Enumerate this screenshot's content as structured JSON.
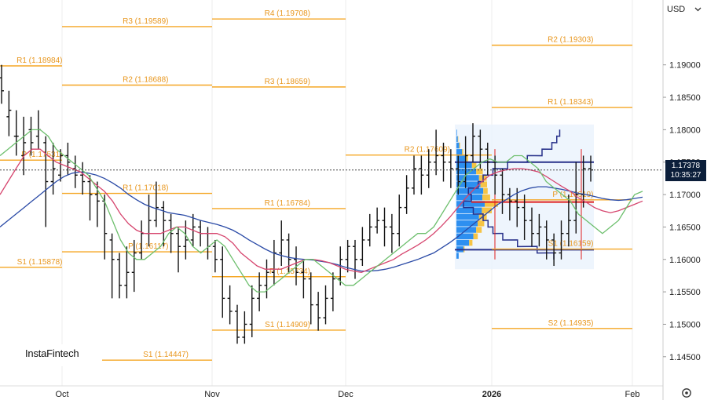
{
  "currency": "USD",
  "current_price": {
    "value": "1.17378",
    "countdown": "10:35:27"
  },
  "watermark": "InstaFintech",
  "icons": {
    "settings": "gear-icon",
    "dropdown": "chevron-down-icon"
  },
  "colors": {
    "pivot": "#f5a623",
    "pivot_text": "#e8971f",
    "candle": "#111111",
    "ma_green": "#6dbf6d",
    "ma_red": "#d6456e",
    "ma_blue": "#2a4aa6",
    "profile_blue": "#2d8ff0",
    "profile_yellow": "#f6c445",
    "poc": "#e02020"
  },
  "chart_data": {
    "type": "candlestick",
    "y_axis": {
      "ticks": [
        "1.19000",
        "1.18500",
        "1.18000",
        "1.17500",
        "1.17000",
        "1.16500",
        "1.16000",
        "1.15500",
        "1.15000",
        "1.14500"
      ],
      "ylim": [
        1.1405,
        1.2
      ]
    },
    "x_axis": {
      "ticks": [
        {
          "label": "Oct"
        },
        {
          "label": "Nov"
        },
        {
          "label": "Dec"
        },
        {
          "label": "2026",
          "bold": true
        },
        {
          "label": "Feb"
        }
      ]
    },
    "pivot_levels": [
      {
        "period": "Sep",
        "label": "R1 (1.18984)",
        "value": 1.18984
      },
      {
        "period": "Sep",
        "label": "P (1.17531)",
        "value": 1.17531
      },
      {
        "period": "Sep",
        "label": "S1 (1.15878)",
        "value": 1.15878
      },
      {
        "period": "Oct",
        "label": "R3 (1.19589)",
        "value": 1.19589
      },
      {
        "period": "Oct",
        "label": "R2 (1.18688)",
        "value": 1.18688
      },
      {
        "period": "Oct",
        "label": "R1 (1.17018)",
        "value": 1.17018
      },
      {
        "period": "Oct",
        "label": "P (1.16117)",
        "value": 1.16117
      },
      {
        "period": "Oct",
        "label": "S1 (1.14447)",
        "value": 1.14447
      },
      {
        "period": "Nov",
        "label": "R4 (1.19708)",
        "value": 1.19708
      },
      {
        "period": "Nov",
        "label": "R3 (1.18659)",
        "value": 1.18659
      },
      {
        "period": "Nov",
        "label": "R1 (1.16784)",
        "value": 1.16784
      },
      {
        "period": "Nov",
        "label": "P (1.15734)",
        "value": 1.15734
      },
      {
        "period": "Nov",
        "label": "S1 (1.14909)",
        "value": 1.14909
      },
      {
        "period": "Dec",
        "label": "R2 (1.19303)",
        "value": 1.19303
      },
      {
        "period": "Dec",
        "label": "R1 (1.18343)",
        "value": 1.18343
      },
      {
        "period": "Dec",
        "label": "R2 (1.17609)",
        "value": 1.17609
      },
      {
        "period": "Dec",
        "label": "P (1.16919)",
        "value": 1.16919
      },
      {
        "period": "Dec",
        "label": "S1 (1.16159)",
        "value": 1.16159
      },
      {
        "period": "Dec",
        "label": "S2 (1.14935)",
        "value": 1.14935
      }
    ],
    "ohlc": [
      [
        1.188,
        1.186,
        1.19,
        1.184
      ],
      [
        1.182,
        1.183,
        1.186,
        1.179
      ],
      [
        1.179,
        1.179,
        1.183,
        1.176
      ],
      [
        1.176,
        1.178,
        1.182,
        1.173
      ],
      [
        1.18,
        1.178,
        1.182,
        1.176
      ],
      [
        1.179,
        1.18,
        1.183,
        1.177
      ],
      [
        1.178,
        1.172,
        1.179,
        1.165
      ],
      [
        1.172,
        1.174,
        1.178,
        1.17
      ],
      [
        1.173,
        1.176,
        1.177,
        1.172
      ],
      [
        1.176,
        1.175,
        1.178,
        1.173
      ],
      [
        1.174,
        1.173,
        1.176,
        1.171
      ],
      [
        1.173,
        1.172,
        1.175,
        1.17
      ],
      [
        1.172,
        1.17,
        1.173,
        1.166
      ],
      [
        1.17,
        1.169,
        1.172,
        1.165
      ],
      [
        1.169,
        1.164,
        1.17,
        1.16
      ],
      [
        1.163,
        1.16,
        1.164,
        1.154
      ],
      [
        1.16,
        1.156,
        1.161,
        1.154
      ],
      [
        1.156,
        1.158,
        1.162,
        1.154
      ],
      [
        1.158,
        1.161,
        1.163,
        1.155
      ],
      [
        1.161,
        1.164,
        1.166,
        1.16
      ],
      [
        1.164,
        1.166,
        1.17,
        1.162
      ],
      [
        1.166,
        1.168,
        1.172,
        1.165
      ],
      [
        1.168,
        1.166,
        1.169,
        1.162
      ],
      [
        1.166,
        1.164,
        1.167,
        1.161
      ],
      [
        1.164,
        1.162,
        1.165,
        1.158
      ],
      [
        1.162,
        1.163,
        1.166,
        1.16
      ],
      [
        1.163,
        1.165,
        1.167,
        1.162
      ],
      [
        1.165,
        1.164,
        1.166,
        1.162
      ],
      [
        1.164,
        1.162,
        1.165,
        1.16
      ],
      [
        1.162,
        1.16,
        1.163,
        1.158
      ],
      [
        1.16,
        1.154,
        1.162,
        1.151
      ],
      [
        1.154,
        1.152,
        1.156,
        1.15
      ],
      [
        1.152,
        1.148,
        1.153,
        1.147
      ],
      [
        1.148,
        1.15,
        1.152,
        1.147
      ],
      [
        1.15,
        1.154,
        1.156,
        1.148
      ],
      [
        1.154,
        1.156,
        1.158,
        1.152
      ],
      [
        1.156,
        1.158,
        1.16,
        1.154
      ],
      [
        1.158,
        1.161,
        1.163,
        1.156
      ],
      [
        1.161,
        1.163,
        1.166,
        1.159
      ],
      [
        1.163,
        1.16,
        1.164,
        1.158
      ],
      [
        1.16,
        1.158,
        1.162,
        1.156
      ],
      [
        1.158,
        1.157,
        1.16,
        1.154
      ],
      [
        1.157,
        1.153,
        1.158,
        1.15
      ],
      [
        1.153,
        1.151,
        1.155,
        1.149
      ],
      [
        1.151,
        1.154,
        1.156,
        1.15
      ],
      [
        1.154,
        1.157,
        1.158,
        1.152
      ],
      [
        1.157,
        1.16,
        1.162,
        1.156
      ],
      [
        1.16,
        1.162,
        1.163,
        1.158
      ],
      [
        1.162,
        1.16,
        1.163,
        1.157
      ],
      [
        1.16,
        1.163,
        1.165,
        1.159
      ],
      [
        1.163,
        1.165,
        1.167,
        1.162
      ],
      [
        1.165,
        1.166,
        1.168,
        1.164
      ],
      [
        1.166,
        1.165,
        1.168,
        1.162
      ],
      [
        1.165,
        1.164,
        1.167,
        1.161
      ],
      [
        1.164,
        1.168,
        1.17,
        1.162
      ],
      [
        1.168,
        1.171,
        1.173,
        1.167
      ],
      [
        1.171,
        1.174,
        1.176,
        1.17
      ],
      [
        1.174,
        1.173,
        1.176,
        1.17
      ],
      [
        1.173,
        1.175,
        1.177,
        1.171
      ],
      [
        1.175,
        1.176,
        1.18,
        1.173
      ],
      [
        1.176,
        1.175,
        1.178,
        1.172
      ],
      [
        1.175,
        1.174,
        1.177,
        1.171
      ],
      [
        1.174,
        1.172,
        1.176,
        1.17
      ],
      [
        1.172,
        1.176,
        1.179,
        1.171
      ],
      [
        1.176,
        1.179,
        1.181,
        1.175
      ],
      [
        1.179,
        1.177,
        1.18,
        1.174
      ],
      [
        1.177,
        1.175,
        1.178,
        1.173
      ],
      [
        1.175,
        1.173,
        1.176,
        1.17
      ],
      [
        1.173,
        1.17,
        1.174,
        1.167
      ],
      [
        1.17,
        1.169,
        1.171,
        1.166
      ],
      [
        1.169,
        1.168,
        1.171,
        1.165
      ],
      [
        1.168,
        1.166,
        1.17,
        1.163
      ],
      [
        1.166,
        1.164,
        1.168,
        1.162
      ],
      [
        1.164,
        1.165,
        1.167,
        1.162
      ],
      [
        1.165,
        1.163,
        1.166,
        1.16
      ],
      [
        1.163,
        1.161,
        1.164,
        1.159
      ],
      [
        1.161,
        1.164,
        1.166,
        1.16
      ],
      [
        1.164,
        1.166,
        1.17,
        1.162
      ],
      [
        1.166,
        1.17,
        1.175,
        1.164
      ],
      [
        1.17,
        1.174,
        1.176,
        1.168
      ],
      [
        1.174,
        1.1738,
        1.176,
        1.172
      ]
    ],
    "ma_green": [
      1.176,
      1.177,
      1.178,
      1.179,
      1.18,
      1.18,
      1.179,
      1.177,
      1.176,
      1.175,
      1.174,
      1.173,
      1.171,
      1.169,
      1.166,
      1.163,
      1.161,
      1.16,
      1.16,
      1.161,
      1.162,
      1.164,
      1.165,
      1.164,
      1.162,
      1.161,
      1.162,
      1.163,
      1.162,
      1.16,
      1.158,
      1.156,
      1.155,
      1.155,
      1.156,
      1.157,
      1.158,
      1.159,
      1.16,
      1.16,
      1.159,
      1.158,
      1.157,
      1.156,
      1.156,
      1.157,
      1.158,
      1.159,
      1.16,
      1.161,
      1.162,
      1.163,
      1.164,
      1.164,
      1.165,
      1.167,
      1.169,
      1.171,
      1.173,
      1.174,
      1.175,
      1.1755,
      1.175,
      1.175,
      1.176,
      1.176,
      1.175,
      1.174,
      1.172,
      1.171,
      1.17,
      1.169,
      1.167,
      1.166,
      1.165,
      1.164,
      1.165,
      1.166,
      1.168,
      1.17,
      1.1705
    ],
    "ma_red": [
      1.17,
      1.172,
      1.174,
      1.176,
      1.177,
      1.177,
      1.176,
      1.175,
      1.1745,
      1.174,
      1.1735,
      1.1725,
      1.1715,
      1.1705,
      1.169,
      1.167,
      1.1655,
      1.1645,
      1.164,
      1.164,
      1.164,
      1.1645,
      1.165,
      1.165,
      1.1645,
      1.164,
      1.164,
      1.164,
      1.1635,
      1.1625,
      1.161,
      1.16,
      1.159,
      1.1585,
      1.1585,
      1.1585,
      1.159,
      1.1595,
      1.16,
      1.16,
      1.1598,
      1.1595,
      1.159,
      1.1585,
      1.1582,
      1.158,
      1.1585,
      1.159,
      1.1595,
      1.16,
      1.1608,
      1.1615,
      1.1622,
      1.163,
      1.164,
      1.1652,
      1.1665,
      1.168,
      1.1695,
      1.1708,
      1.172,
      1.173,
      1.1735,
      1.1738,
      1.174,
      1.174,
      1.1738,
      1.1735,
      1.1728,
      1.172,
      1.1712,
      1.1705,
      1.1695,
      1.1688,
      1.168,
      1.1675,
      1.1672,
      1.1675,
      1.168,
      1.1685,
      1.169
    ],
    "ma_blue": [
      1.165,
      1.166,
      1.167,
      1.168,
      1.169,
      1.17,
      1.171,
      1.172,
      1.1728,
      1.1733,
      1.1735,
      1.1733,
      1.173,
      1.1725,
      1.1718,
      1.171,
      1.17,
      1.1692,
      1.1685,
      1.168,
      1.1676,
      1.1672,
      1.167,
      1.1668,
      1.1664,
      1.166,
      1.1657,
      1.1654,
      1.165,
      1.1645,
      1.1638,
      1.163,
      1.1623,
      1.1616,
      1.161,
      1.1606,
      1.1603,
      1.1601,
      1.16,
      1.1599,
      1.1597,
      1.1595,
      1.1592,
      1.1588,
      1.1585,
      1.1582,
      1.1582,
      1.1583,
      1.1585,
      1.1588,
      1.1592,
      1.1596,
      1.16,
      1.1605,
      1.161,
      1.1618,
      1.1626,
      1.1635,
      1.1645,
      1.1655,
      1.1665,
      1.1675,
      1.1685,
      1.1692,
      1.17,
      1.1706,
      1.171,
      1.1712,
      1.1712,
      1.171,
      1.1708,
      1.1705,
      1.1702,
      1.17,
      1.1697,
      1.1694,
      1.1692,
      1.1691,
      1.1692,
      1.1694,
      1.1696
    ],
    "volume_profile": {
      "price_range": [
        1.1595,
        1.18
      ],
      "bins": [
        {
          "price": 1.1795,
          "blue": 0.02,
          "yellow": 0.0
        },
        {
          "price": 1.1785,
          "blue": 0.05,
          "yellow": 0.02
        },
        {
          "price": 1.1775,
          "blue": 0.1,
          "yellow": 0.04
        },
        {
          "price": 1.1765,
          "blue": 0.2,
          "yellow": 0.05
        },
        {
          "price": 1.1755,
          "blue": 0.35,
          "yellow": 0.08
        },
        {
          "price": 1.1745,
          "blue": 0.55,
          "yellow": 0.2
        },
        {
          "price": 1.1735,
          "blue": 0.7,
          "yellow": 0.3
        },
        {
          "price": 1.1725,
          "blue": 0.8,
          "yellow": 0.35
        },
        {
          "price": 1.1715,
          "blue": 0.85,
          "yellow": 0.3
        },
        {
          "price": 1.1705,
          "blue": 0.95,
          "yellow": 0.2
        },
        {
          "price": 1.1695,
          "blue": 0.92,
          "yellow": 0.35
        },
        {
          "price": 1.1685,
          "blue": 1.0,
          "yellow": 0.6
        },
        {
          "price": 1.1675,
          "blue": 0.9,
          "yellow": 0.45
        },
        {
          "price": 1.1665,
          "blue": 0.8,
          "yellow": 0.35
        },
        {
          "price": 1.1655,
          "blue": 0.75,
          "yellow": 0.3
        },
        {
          "price": 1.1645,
          "blue": 0.7,
          "yellow": 0.25
        },
        {
          "price": 1.1635,
          "blue": 0.6,
          "yellow": 0.2
        },
        {
          "price": 1.1625,
          "blue": 0.45,
          "yellow": 0.15
        },
        {
          "price": 1.1615,
          "blue": 0.25,
          "yellow": 0.05
        },
        {
          "price": 1.1605,
          "blue": 0.08,
          "yellow": 0.0
        }
      ],
      "poc": 1.16885,
      "vah": 1.175,
      "val": 1.1615
    },
    "dotted_price_line": 1.17378
  }
}
